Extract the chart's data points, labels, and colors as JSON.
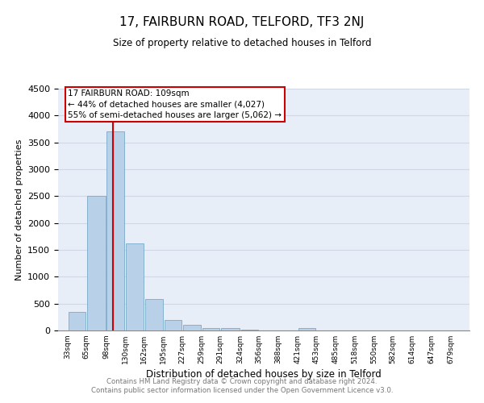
{
  "title": "17, FAIRBURN ROAD, TELFORD, TF3 2NJ",
  "subtitle": "Size of property relative to detached houses in Telford",
  "xlabel": "Distribution of detached houses by size in Telford",
  "ylabel": "Number of detached properties",
  "bar_color": "#b8d0e8",
  "bar_edge_color": "#7aaac8",
  "property_line_x": 109,
  "annotation_line1": "17 FAIRBURN ROAD: 109sqm",
  "annotation_line2": "← 44% of detached houses are smaller (4,027)",
  "annotation_line3": "55% of semi-detached houses are larger (5,062) →",
  "annotation_box_color": "#ffffff",
  "annotation_box_edge_color": "#cc0000",
  "property_line_color": "#cc0000",
  "footnote1": "Contains HM Land Registry data © Crown copyright and database right 2024.",
  "footnote2": "Contains public sector information licensed under the Open Government Licence v3.0.",
  "bin_labels": [
    "33sqm",
    "65sqm",
    "98sqm",
    "130sqm",
    "162sqm",
    "195sqm",
    "227sqm",
    "259sqm",
    "291sqm",
    "324sqm",
    "356sqm",
    "388sqm",
    "421sqm",
    "453sqm",
    "485sqm",
    "518sqm",
    "550sqm",
    "582sqm",
    "614sqm",
    "647sqm",
    "679sqm"
  ],
  "bin_edges": [
    33,
    65,
    98,
    130,
    162,
    195,
    227,
    259,
    291,
    324,
    356,
    388,
    421,
    453,
    485,
    518,
    550,
    582,
    614,
    647,
    679
  ],
  "counts": [
    350,
    2500,
    3700,
    1620,
    590,
    200,
    100,
    50,
    50,
    10,
    5,
    3,
    50,
    1,
    1,
    0,
    0,
    0,
    0,
    0
  ],
  "ylim": [
    0,
    4500
  ],
  "yticks": [
    0,
    500,
    1000,
    1500,
    2000,
    2500,
    3000,
    3500,
    4000,
    4500
  ],
  "background_color": "#e8eef8",
  "grid_color": "#d0d8e8"
}
